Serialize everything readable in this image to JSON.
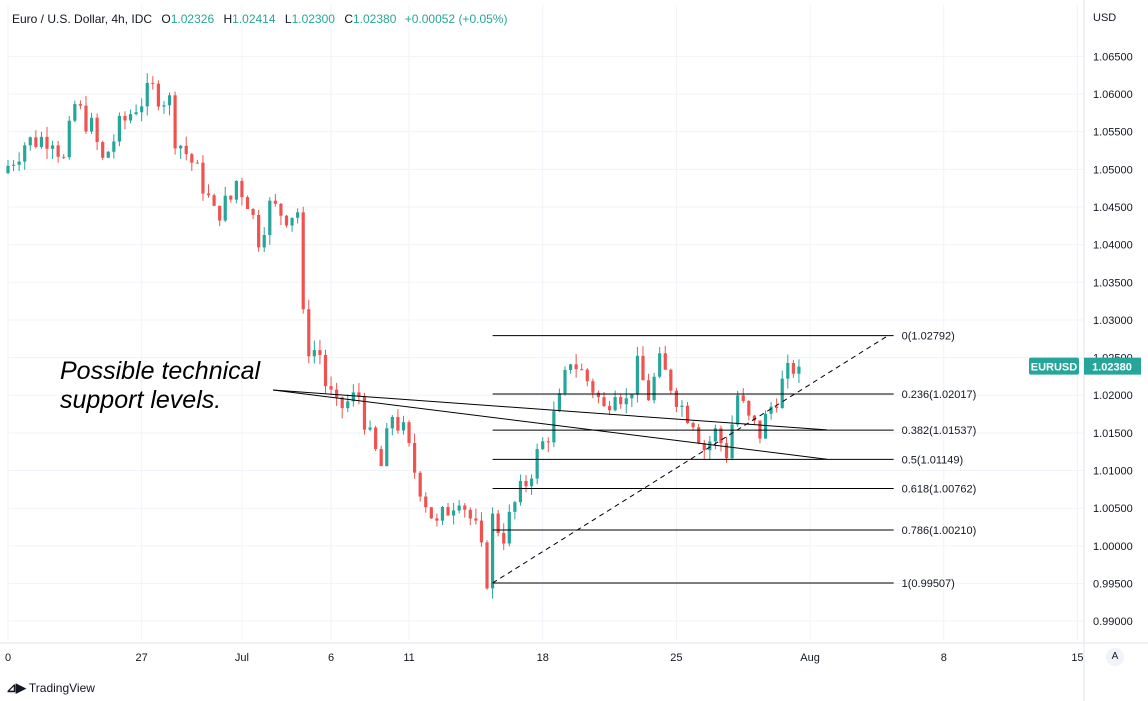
{
  "header": {
    "symbol": "Euro / U.S. Dollar, 4h, IDC",
    "o_label": "O",
    "o_value": "1.02326",
    "h_label": "H",
    "h_value": "1.02414",
    "l_label": "L",
    "l_value": "1.02300",
    "c_label": "C",
    "c_value": "1.02380",
    "change": "+0.00052 (+0.05%)"
  },
  "currency_label": "USD",
  "auto_button_label": "A",
  "branding": "TradingView",
  "annotation_text": [
    "Possible technical",
    "support levels."
  ],
  "colors": {
    "up": "#26a69a",
    "down": "#ef5350",
    "badge": "#26a69a",
    "line": "#000000",
    "grid": "#f0f3fa"
  },
  "chart_data": {
    "type": "candlestick",
    "y_axis": {
      "min": 0.9875,
      "max": 1.0685,
      "ticks": [
        "1.06500",
        "1.06000",
        "1.05500",
        "1.05000",
        "1.04500",
        "1.04000",
        "1.03500",
        "1.03000",
        "1.02500",
        "1.02000",
        "1.01500",
        "1.01000",
        "1.00500",
        "1.00000",
        "0.99500",
        "0.99000"
      ]
    },
    "x_axis": {
      "ticks": [
        {
          "label": "0",
          "bar": 0
        },
        {
          "label": "27",
          "bar": 24
        },
        {
          "label": "Jul",
          "bar": 42
        },
        {
          "label": "6",
          "bar": 58
        },
        {
          "label": "11",
          "bar": 72
        },
        {
          "label": "18",
          "bar": 96
        },
        {
          "label": "25",
          "bar": 120
        },
        {
          "label": "Aug",
          "bar": 144
        },
        {
          "label": "8",
          "bar": 168
        },
        {
          "label": "15",
          "bar": 192
        }
      ]
    },
    "price_badge": {
      "symbol": "EURUSD",
      "value": "1.02380",
      "price": 1.0238
    },
    "fib_levels": [
      {
        "ratio": "0",
        "price": 1.02792,
        "label": "0(1.02792)"
      },
      {
        "ratio": "0.236",
        "price": 1.02017,
        "label": "0.236(1.02017)"
      },
      {
        "ratio": "0.382",
        "price": 1.01537,
        "label": "0.382(1.01537)"
      },
      {
        "ratio": "0.5",
        "price": 1.01149,
        "label": "0.5(1.01149)"
      },
      {
        "ratio": "0.618",
        "price": 1.00762,
        "label": "0.618(1.00762)"
      },
      {
        "ratio": "0.786",
        "price": 1.0021,
        "label": "0.786(1.00210)"
      },
      {
        "ratio": "1",
        "price": 0.99507,
        "label": "1(0.99507)"
      }
    ],
    "fib_x_range": {
      "start_bar": 87,
      "end_bar": 159
    },
    "trend_line": {
      "x1_bar": 87,
      "y1": 0.99507,
      "x2_bar": 158,
      "y2": 1.02792
    },
    "support_lines": [
      {
        "x1_bar": 48,
        "y1": 1.0206,
        "x2_bar": 147,
        "y2": 1.0154
      },
      {
        "x1_bar": 48,
        "y1": 1.0206,
        "x2_bar": 147,
        "y2": 1.0115
      }
    ],
    "waypoints": [
      [
        0,
        1.0495
      ],
      [
        4,
        1.0535
      ],
      [
        9,
        1.0545
      ],
      [
        11,
        1.051
      ],
      [
        13,
        1.0585
      ],
      [
        16,
        1.0555
      ],
      [
        18,
        1.051
      ],
      [
        21,
        1.0555
      ],
      [
        24,
        1.0585
      ],
      [
        27,
        1.0605
      ],
      [
        30,
        1.059
      ],
      [
        31,
        1.0545
      ],
      [
        34,
        1.051
      ],
      [
        36,
        1.048
      ],
      [
        38,
        1.044
      ],
      [
        41,
        1.046
      ],
      [
        42,
        1.0485
      ],
      [
        44,
        1.046
      ],
      [
        46,
        1.041
      ],
      [
        48,
        1.045
      ],
      [
        51,
        1.044
      ],
      [
        53,
        1.0445
      ],
      [
        54,
        1.03
      ],
      [
        55,
        1.0265
      ],
      [
        57,
        1.0255
      ],
      [
        58,
        1.0215
      ],
      [
        60,
        1.018
      ],
      [
        62,
        1.019
      ],
      [
        64,
        1.02
      ],
      [
        66,
        1.014
      ],
      [
        68,
        1.0105
      ],
      [
        70,
        1.0175
      ],
      [
        72,
        1.015
      ],
      [
        74,
        1.01
      ],
      [
        76,
        1.006
      ],
      [
        78,
        1.0025
      ],
      [
        80,
        1.005
      ],
      [
        82,
        1.007
      ],
      [
        85,
        1.002
      ],
      [
        87,
        0.9958
      ],
      [
        88,
        1.0035
      ],
      [
        90,
        1.0015
      ],
      [
        92,
        1.0055
      ],
      [
        94,
        1.0085
      ],
      [
        96,
        1.012
      ],
      [
        98,
        1.015
      ],
      [
        100,
        1.019
      ],
      [
        102,
        1.025
      ],
      [
        104,
        1.023
      ],
      [
        106,
        1.021
      ],
      [
        108,
        1.018
      ],
      [
        110,
        1.0215
      ],
      [
        112,
        1.019
      ],
      [
        114,
        1.0235
      ],
      [
        116,
        1.02
      ],
      [
        118,
        1.024
      ],
      [
        120,
        1.0215
      ],
      [
        122,
        1.0185
      ],
      [
        124,
        1.017
      ],
      [
        126,
        1.013
      ],
      [
        128,
        1.015
      ],
      [
        130,
        1.0125
      ],
      [
        132,
        1.02
      ],
      [
        134,
        1.0165
      ],
      [
        136,
        1.015
      ],
      [
        138,
        1.0185
      ],
      [
        140,
        1.0215
      ],
      [
        142,
        1.0238
      ]
    ]
  }
}
